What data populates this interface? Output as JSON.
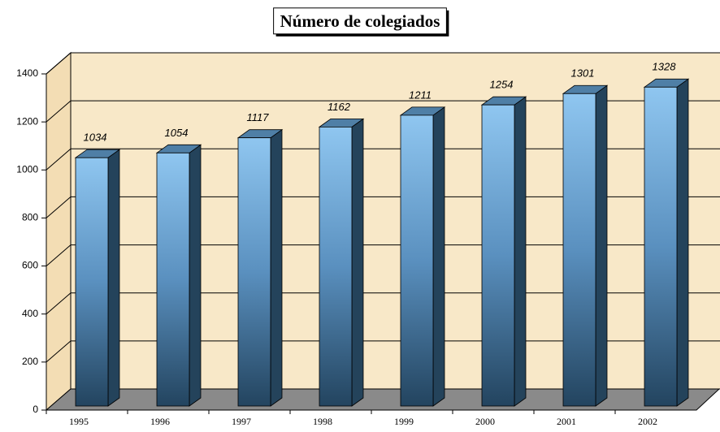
{
  "chart_data": {
    "type": "bar",
    "title": "Número de colegiados",
    "categories": [
      "1995",
      "1996",
      "1997",
      "1998",
      "1999",
      "2000",
      "2001",
      "2002"
    ],
    "values": [
      1034,
      1054,
      1117,
      1162,
      1211,
      1254,
      1301,
      1328
    ],
    "color": "#5a9ad0",
    "ylim": [
      0,
      1400
    ],
    "yticks": [
      0,
      200,
      400,
      600,
      800,
      1000,
      1200,
      1400
    ],
    "grid": true
  }
}
